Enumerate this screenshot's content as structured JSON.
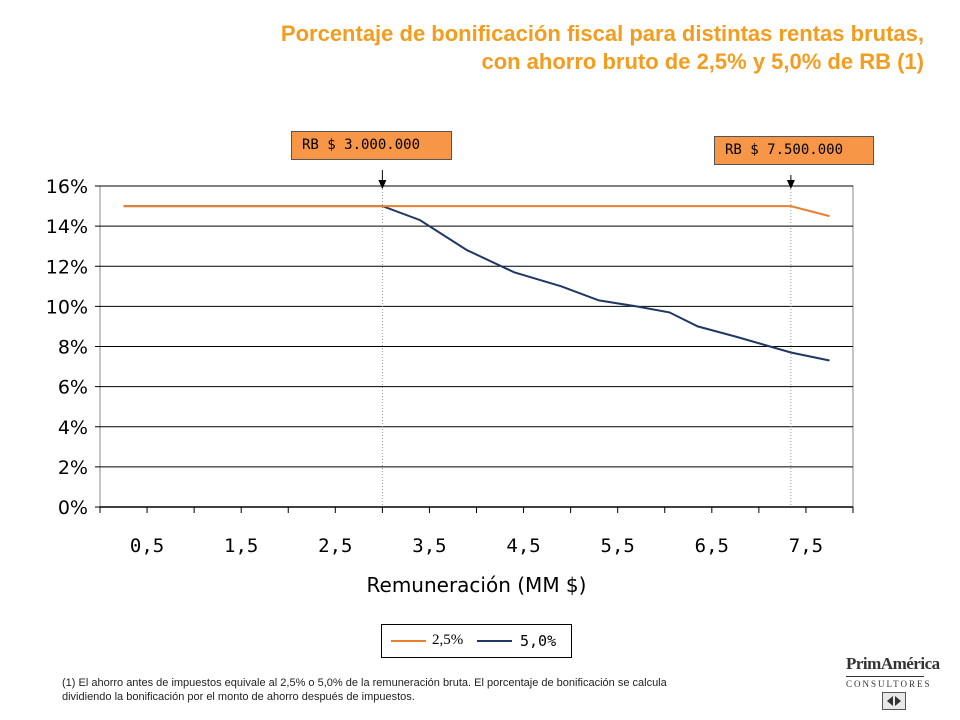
{
  "title": {
    "line1": "Porcentaje de bonificación fiscal para distintas rentas brutas,",
    "line2": "con ahorro bruto de 2,5% y 5,0% de RB (1)"
  },
  "annotations": [
    {
      "label": "RB $ 3.000.000",
      "x": 3.0
    },
    {
      "label": "RB $ 7.500.000",
      "x": 7.34
    }
  ],
  "chart_data": {
    "type": "line",
    "xlabel": "Remuneración (MM $)",
    "ylabel": "",
    "xlim": [
      0,
      8
    ],
    "ylim": [
      0,
      0.16
    ],
    "x_ticks": [
      "0,5",
      "1,5",
      "2,5",
      "3,5",
      "4,5",
      "5,5",
      "6,5",
      "7,5"
    ],
    "y_ticks": [
      "0%",
      "2%",
      "4%",
      "6%",
      "8%",
      "10%",
      "12%",
      "14%",
      "16%"
    ],
    "grid": "horizontal",
    "series": [
      {
        "name": "2,5%",
        "color": "#e8802e",
        "x": [
          0.25,
          3.0,
          7.34,
          7.75
        ],
        "y": [
          0.15,
          0.15,
          0.15,
          0.145
        ]
      },
      {
        "name": "5,0%",
        "color": "#1f3864",
        "x": [
          0.25,
          3.0,
          3.4,
          3.9,
          4.4,
          4.9,
          5.3,
          5.7,
          6.05,
          6.35,
          6.75,
          7.34,
          7.75
        ],
        "y": [
          0.15,
          0.15,
          0.143,
          0.128,
          0.117,
          0.11,
          0.103,
          0.1,
          0.097,
          0.09,
          0.085,
          0.077,
          0.073
        ]
      }
    ]
  },
  "legend": {
    "items": [
      "2,5%",
      "5,0%"
    ]
  },
  "footnote": {
    "line1": "(1) El ahorro antes de impuestos equivale al 2,5% o 5,0% de la remuneración bruta. El porcentaje de bonificación se calcula",
    "line2": "dividiendo la bonificación por el monto de ahorro después de impuestos."
  },
  "logo": {
    "brand": "PrimAmérica",
    "sub": "CONSULTORES"
  }
}
